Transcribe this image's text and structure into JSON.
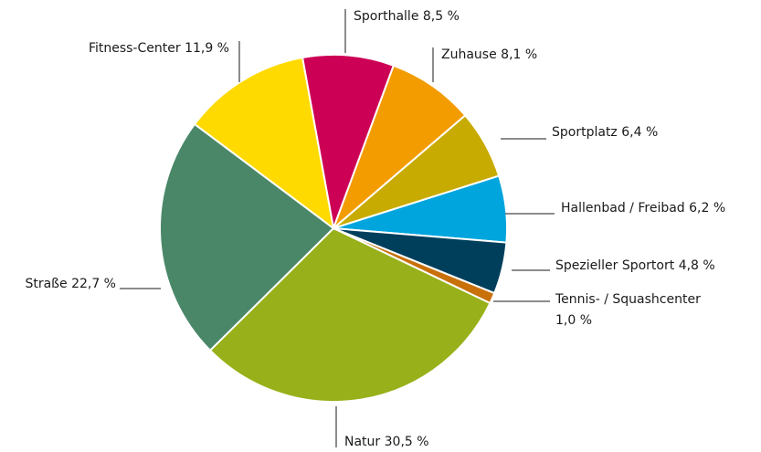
{
  "chart_data": {
    "type": "pie",
    "categories": [
      "Sporthalle",
      "Zuhause",
      "Sportplatz",
      "Hallenbad / Freibad",
      "Spezieller Sportort",
      "Tennis- / Squashcenter",
      "Natur",
      "Straße",
      "Fitness-Center"
    ],
    "values": [
      8.5,
      8.1,
      6.4,
      6.2,
      4.8,
      1.0,
      30.5,
      22.7,
      11.9
    ],
    "value_labels": [
      "8,5 %",
      "8,1 %",
      "6,4 %",
      "6,2 %",
      "4,8 %",
      "1,0 %",
      "30,5 %",
      "22,7 %",
      "11,9 %"
    ],
    "colors": [
      "#cc0055",
      "#f39c00",
      "#c8ab00",
      "#00a5de",
      "#003f5c",
      "#c8700a",
      "#98b019",
      "#4a8769",
      "#ffda00"
    ]
  }
}
